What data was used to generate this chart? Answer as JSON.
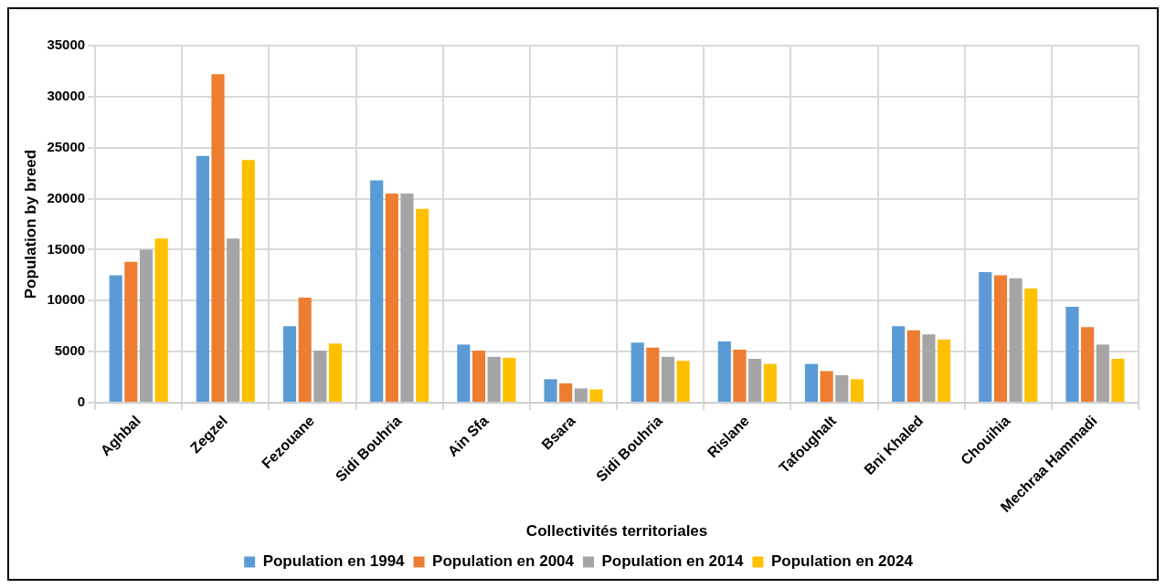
{
  "chart_data": {
    "type": "bar",
    "xlabel": "Collectivités territoriales",
    "ylabel": "Population by breed",
    "categories": [
      "Aghbal",
      "Zegzel",
      "Fezouane",
      "Sidi Bouhria",
      "Ain Sfa",
      "Bsara",
      "Sidi Bouhria",
      "Rislane",
      "Tafoughalt",
      "Bni Khaled",
      "Chouihia",
      "Mechraa Hammadi"
    ],
    "series": [
      {
        "name": "Population en 1994",
        "color": "#5b9bd5",
        "values": [
          12500,
          24200,
          7500,
          21800,
          5700,
          2300,
          5900,
          6000,
          3800,
          7500,
          12800,
          9400
        ]
      },
      {
        "name": "Population en 2004",
        "color": "#ed7d31",
        "values": [
          13800,
          32200,
          10300,
          20500,
          5100,
          1900,
          5400,
          5200,
          3100,
          7100,
          12500,
          7400
        ]
      },
      {
        "name": "Population en 2014",
        "color": "#a5a5a5",
        "values": [
          15000,
          16100,
          5100,
          20500,
          4500,
          1400,
          4500,
          4300,
          2700,
          6700,
          12200,
          5700
        ]
      },
      {
        "name": "Population en 2024",
        "color": "#ffc000",
        "values": [
          16100,
          23800,
          5800,
          19000,
          4400,
          1300,
          4100,
          3800,
          2300,
          6200,
          11200,
          4300
        ]
      }
    ],
    "ylim": [
      0,
      35000
    ],
    "yticks": [
      0,
      5000,
      10000,
      15000,
      20000,
      25000,
      30000,
      35000
    ],
    "grid": true,
    "legend": "bottom"
  }
}
